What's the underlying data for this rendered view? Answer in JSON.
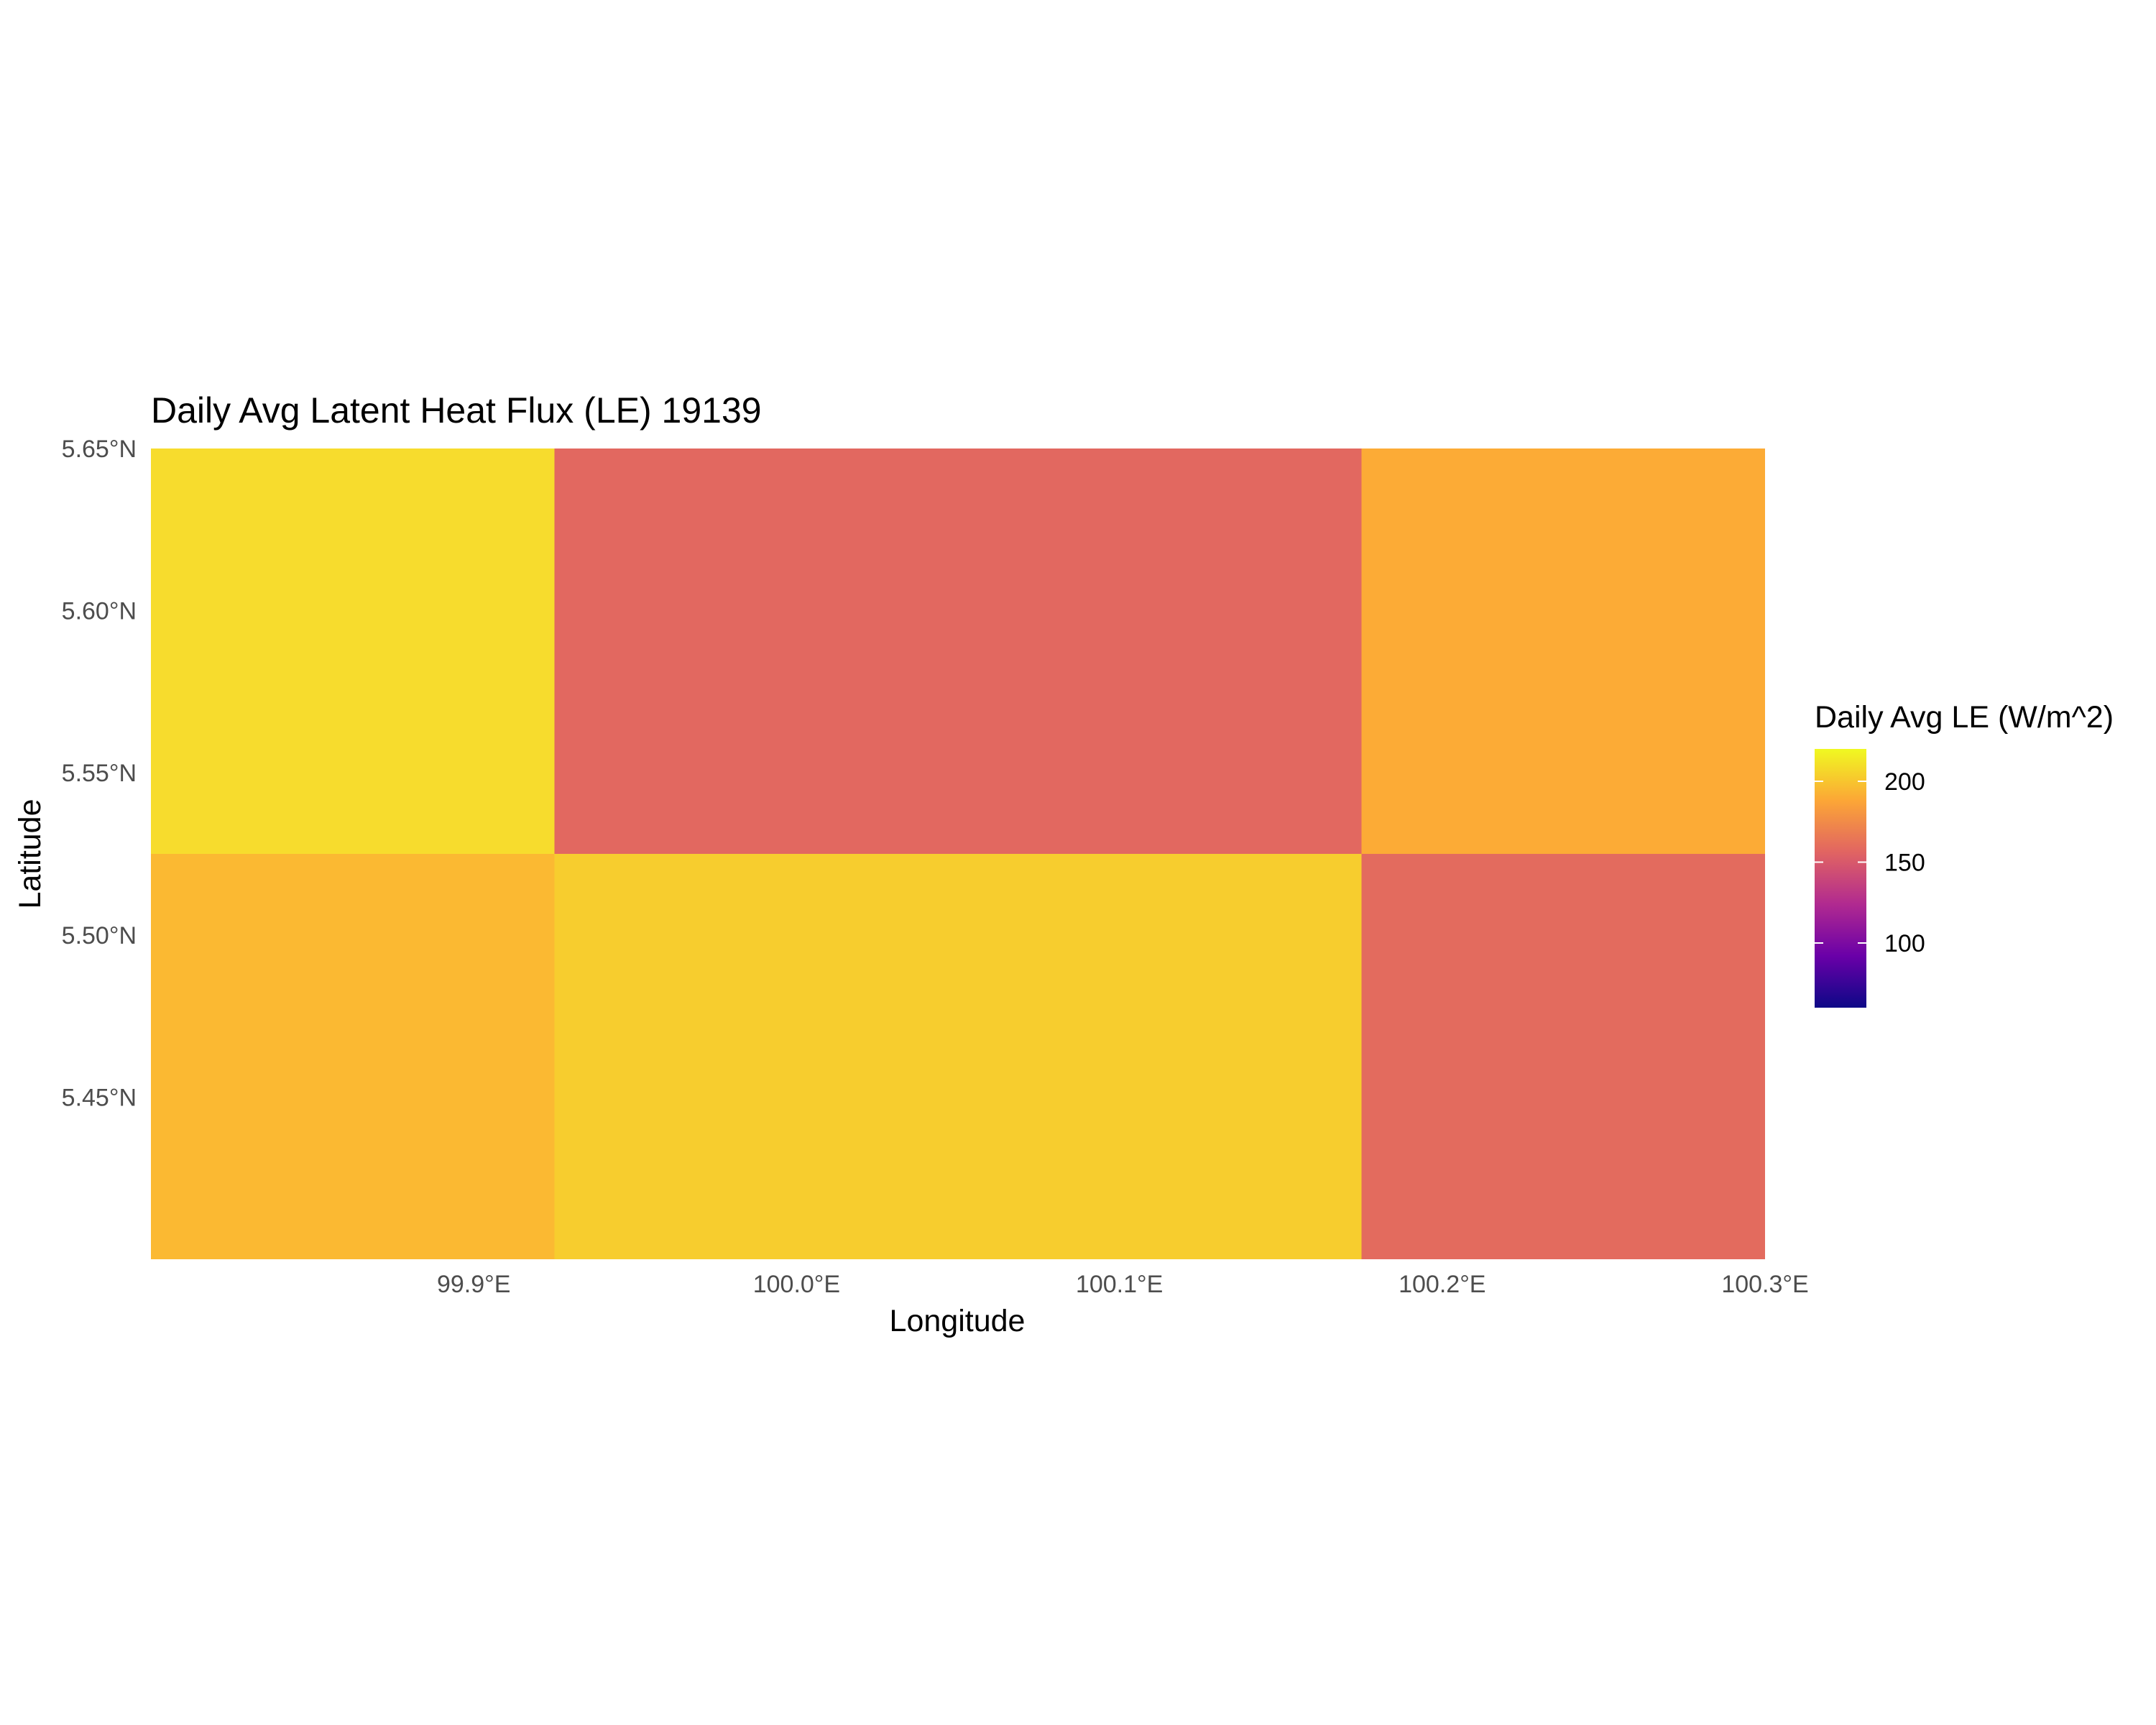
{
  "chart_data": {
    "type": "heatmap",
    "title": "Daily Avg Latent Heat Flux (LE) 19139",
    "xlabel": "Longitude",
    "ylabel": "Latitude",
    "xlim": [
      99.8,
      100.3
    ],
    "ylim": [
      5.4,
      5.65
    ],
    "x_ticks": [
      {
        "value": 99.9,
        "label": "99.9°E"
      },
      {
        "value": 100.0,
        "label": "100.0°E"
      },
      {
        "value": 100.1,
        "label": "100.1°E"
      },
      {
        "value": 100.2,
        "label": "100.2°E"
      },
      {
        "value": 100.3,
        "label": "100.3°E"
      }
    ],
    "y_ticks": [
      {
        "value": 5.45,
        "label": "5.45°N"
      },
      {
        "value": 5.5,
        "label": "5.50°N"
      },
      {
        "value": 5.55,
        "label": "5.55°N"
      },
      {
        "value": 5.6,
        "label": "5.60°N"
      },
      {
        "value": 5.65,
        "label": "5.65°N"
      }
    ],
    "cells": [
      {
        "x0": 99.8,
        "x1": 99.925,
        "y0": 5.525,
        "y1": 5.65,
        "value": 212,
        "color": "#f7dc2d"
      },
      {
        "x0": 99.925,
        "x1": 100.175,
        "y0": 5.525,
        "y1": 5.65,
        "value": 160,
        "color": "#e26860"
      },
      {
        "x0": 100.175,
        "x1": 100.3,
        "y0": 5.525,
        "y1": 5.65,
        "value": 193,
        "color": "#fcab36"
      },
      {
        "x0": 99.8,
        "x1": 99.925,
        "y0": 5.4,
        "y1": 5.525,
        "value": 198,
        "color": "#fbb932"
      },
      {
        "x0": 99.925,
        "x1": 100.175,
        "y0": 5.4,
        "y1": 5.525,
        "value": 206,
        "color": "#f7cd2e"
      },
      {
        "x0": 100.175,
        "x1": 100.3,
        "y0": 5.4,
        "y1": 5.525,
        "value": 161,
        "color": "#e36b5e"
      }
    ],
    "legend": {
      "title": "Daily Avg LE (W/m^2)",
      "position": "right",
      "range": [
        60,
        220
      ],
      "breaks": [
        {
          "value": 100,
          "label": "100"
        },
        {
          "value": 150,
          "label": "150"
        },
        {
          "value": 200,
          "label": "200"
        }
      ],
      "colorscale": [
        "#0d0887",
        "#6a00a8",
        "#b12a90",
        "#e16462",
        "#fca636",
        "#f0f921"
      ]
    }
  }
}
